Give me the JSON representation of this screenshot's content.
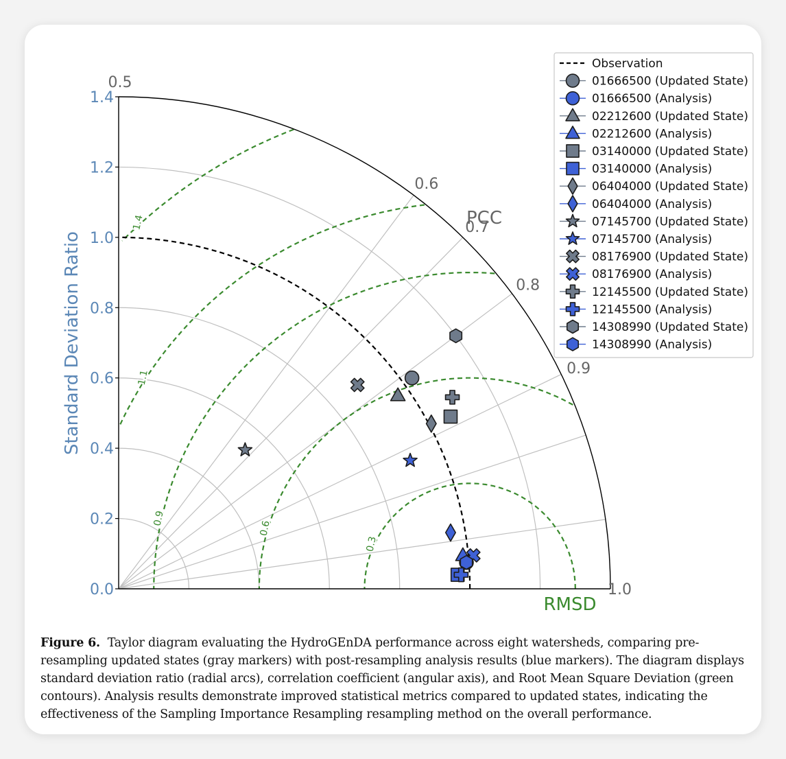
{
  "chart_data": {
    "type": "taylor",
    "radial_axis_label": "Standard Deviation Ratio",
    "angular_axis_label": "PCC",
    "rmsd_label": "RMSD",
    "std_range": [
      0,
      1.4
    ],
    "std_ticks": [
      "0.0",
      "0.2",
      "0.4",
      "0.6",
      "0.8",
      "1.0",
      "1.2",
      "1.4"
    ],
    "std_tick_values": [
      0,
      0.2,
      0.4,
      0.6,
      0.8,
      1.0,
      1.2,
      1.4
    ],
    "std_gridline_values": [
      0.2,
      0.4,
      0.6,
      0.8,
      1.0,
      1.2
    ],
    "pcc_ticks": [
      {
        "value": 0.5,
        "label": "0.5"
      },
      {
        "value": 0.6,
        "label": "0.6"
      },
      {
        "value": 0.7,
        "label": "0.7"
      },
      {
        "value": 0.8,
        "label": "0.8"
      },
      {
        "value": 0.9,
        "label": "0.9"
      },
      {
        "value": 1.0,
        "label": "1.0"
      }
    ],
    "pcc_gridlines": [
      0.6,
      0.7,
      0.8,
      0.9,
      0.95,
      0.99
    ],
    "rmsd_contours": [
      {
        "value": 0.3,
        "label": "0.3"
      },
      {
        "value": 0.6,
        "label": "0.6"
      },
      {
        "value": 0.9,
        "label": "0.9"
      },
      {
        "value": 1.1,
        "label": "1.1"
      },
      {
        "value": 1.4,
        "label": "1.4"
      }
    ],
    "observation": {
      "name": "Observation",
      "std": 1.0
    },
    "legend_position": "top-right",
    "grid": true,
    "colors": {
      "axis_blue": "#5b87b6",
      "label_gray": "#666666",
      "rmsd_green": "#3a8a2e",
      "grid_gray": "#bfbfbf",
      "updated_fill": "#6f7b8b",
      "analysis_fill": "#3e61d6"
    },
    "series": [
      {
        "name": "01666500 (Updated State)",
        "marker": "circle",
        "group": "updated",
        "x": 0.835,
        "y": 0.6
      },
      {
        "name": "01666500 (Analysis)",
        "marker": "circle",
        "group": "analysis",
        "x": 0.99,
        "y": 0.075
      },
      {
        "name": "02212600 (Updated State)",
        "marker": "triangle",
        "group": "updated",
        "x": 0.795,
        "y": 0.55
      },
      {
        "name": "02212600 (Analysis)",
        "marker": "triangle",
        "group": "analysis",
        "x": 0.98,
        "y": 0.095
      },
      {
        "name": "03140000 (Updated State)",
        "marker": "square",
        "group": "updated",
        "x": 0.945,
        "y": 0.49
      },
      {
        "name": "03140000 (Analysis)",
        "marker": "square",
        "group": "analysis",
        "x": 0.965,
        "y": 0.04
      },
      {
        "name": "06404000 (Updated State)",
        "marker": "diamond",
        "group": "updated",
        "x": 0.89,
        "y": 0.47
      },
      {
        "name": "06404000 (Analysis)",
        "marker": "diamond",
        "group": "analysis",
        "x": 0.945,
        "y": 0.16
      },
      {
        "name": "07145700 (Updated State)",
        "marker": "star",
        "group": "updated",
        "x": 0.36,
        "y": 0.395
      },
      {
        "name": "07145700 (Analysis)",
        "marker": "star",
        "group": "analysis",
        "x": 0.83,
        "y": 0.365
      },
      {
        "name": "08176900 (Updated State)",
        "marker": "x",
        "group": "updated",
        "x": 0.68,
        "y": 0.58
      },
      {
        "name": "08176900 (Analysis)",
        "marker": "x",
        "group": "analysis",
        "x": 1.01,
        "y": 0.095
      },
      {
        "name": "12145500 (Updated State)",
        "marker": "plus",
        "group": "updated",
        "x": 0.95,
        "y": 0.545
      },
      {
        "name": "12145500 (Analysis)",
        "marker": "plus",
        "group": "analysis",
        "x": 0.975,
        "y": 0.04
      },
      {
        "name": "14308990 (Updated State)",
        "marker": "hexagon",
        "group": "updated",
        "x": 0.96,
        "y": 0.72
      },
      {
        "name": "14308990 (Analysis)",
        "marker": "hexagon",
        "group": "analysis",
        "x": 0.99,
        "y": 0.075
      }
    ]
  },
  "caption": {
    "label": "Figure 6.",
    "text": "Taylor diagram evaluating the HydroGEnDA performance across eight watersheds, comparing pre-resampling updated states (gray markers) with post-resampling analysis results (blue markers). The diagram displays standard deviation ratio (radial arcs), correlation coefficient (angular axis), and Root Mean Square Deviation (green contours). Analysis results demonstrate improved statistical metrics compared to updated states, indicating the effectiveness of the Sampling Importance Resampling resampling method on the overall performance."
  }
}
